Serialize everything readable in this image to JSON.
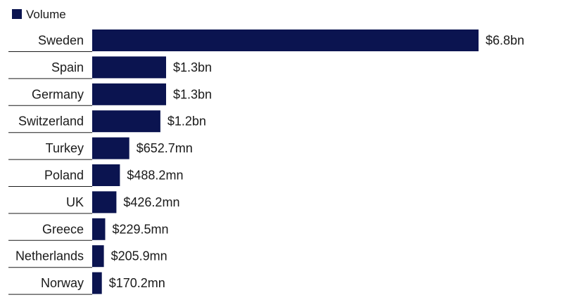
{
  "chart_data": {
    "type": "bar",
    "orientation": "horizontal",
    "legend": {
      "position": "top-left",
      "entries": [
        "Volume"
      ]
    },
    "series": [
      {
        "name": "Volume",
        "color": "#0b1450",
        "values_usd_mn": [
          6800,
          1300,
          1300,
          1200,
          652.7,
          488.2,
          426.2,
          229.5,
          205.9,
          170.2
        ]
      }
    ],
    "categories": [
      "Sweden",
      "Spain",
      "Germany",
      "Switzerland",
      "Turkey",
      "Poland",
      "UK",
      "Greece",
      "Netherlands",
      "Norway"
    ],
    "data_labels": [
      "$6.8bn",
      "$1.3bn",
      "$1.3bn",
      "$1.2bn",
      "$652.7mn",
      "$488.2mn",
      "$426.2mn",
      "$229.5mn",
      "$205.9mn",
      "$170.2mn"
    ],
    "grid": false,
    "title": "",
    "xlabel": "",
    "ylabel": ""
  }
}
